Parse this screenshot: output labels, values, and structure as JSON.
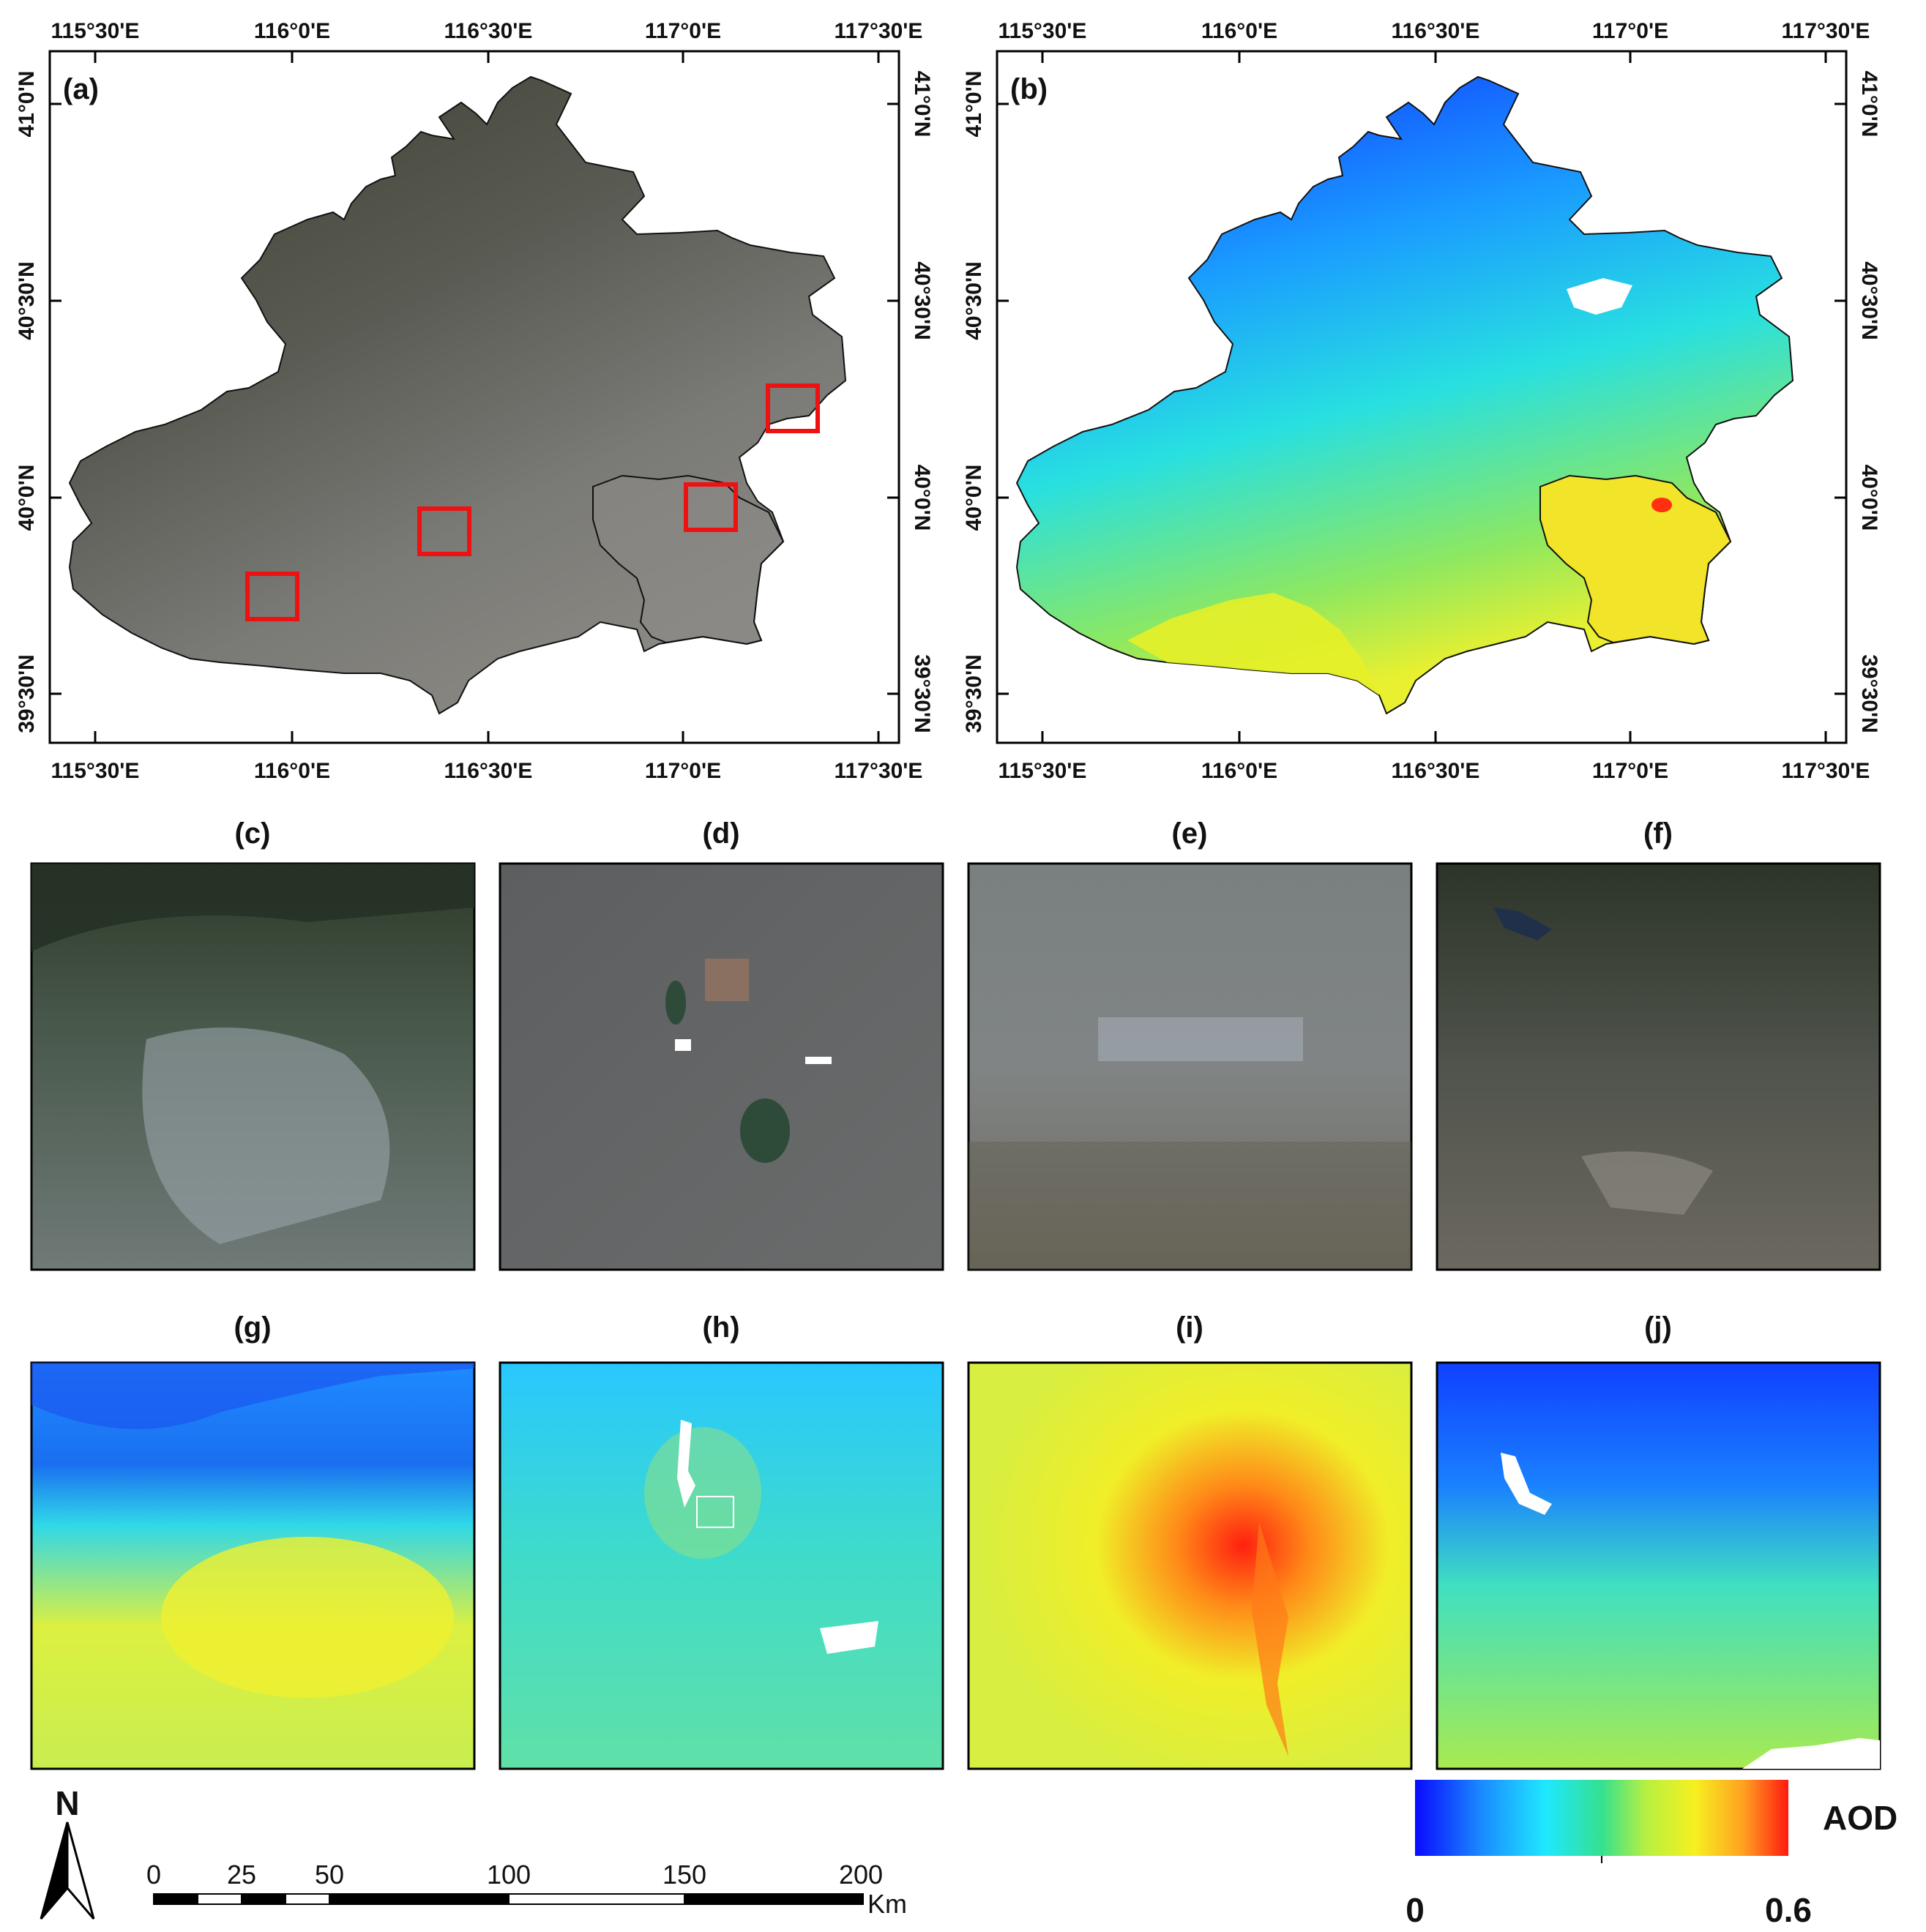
{
  "top_maps": {
    "lon_ticks": [
      "115°30'E",
      "116°0'E",
      "116°30'E",
      "117°0'E",
      "117°30'E"
    ],
    "lat_ticks": [
      "41°0'N",
      "40°30'N",
      "40°0'N",
      "39°30'N"
    ],
    "panel_a_label": "(a)",
    "panel_b_label": "(b)"
  },
  "subset_rgb_labels": [
    "(c)",
    "(d)",
    "(e)",
    "(f)"
  ],
  "subset_aod_labels": [
    "(g)",
    "(h)",
    "(i)",
    "(j)"
  ],
  "north_arrow": {
    "label": "N",
    "icon": "north-arrow-icon"
  },
  "scale_bar": {
    "tick_labels": [
      "0",
      "25",
      "50",
      "100",
      "150",
      "200"
    ],
    "unit": "Km"
  },
  "legend": {
    "title": "AOD",
    "min_label": "0",
    "max_label": "0.6",
    "colors": [
      "#0a0aff",
      "#1a6bff",
      "#1fc8ff",
      "#22e8d8",
      "#38e080",
      "#a8f050",
      "#f2f22a",
      "#ffb020",
      "#ff2a10"
    ]
  },
  "highlight_color": "#ee1111"
}
